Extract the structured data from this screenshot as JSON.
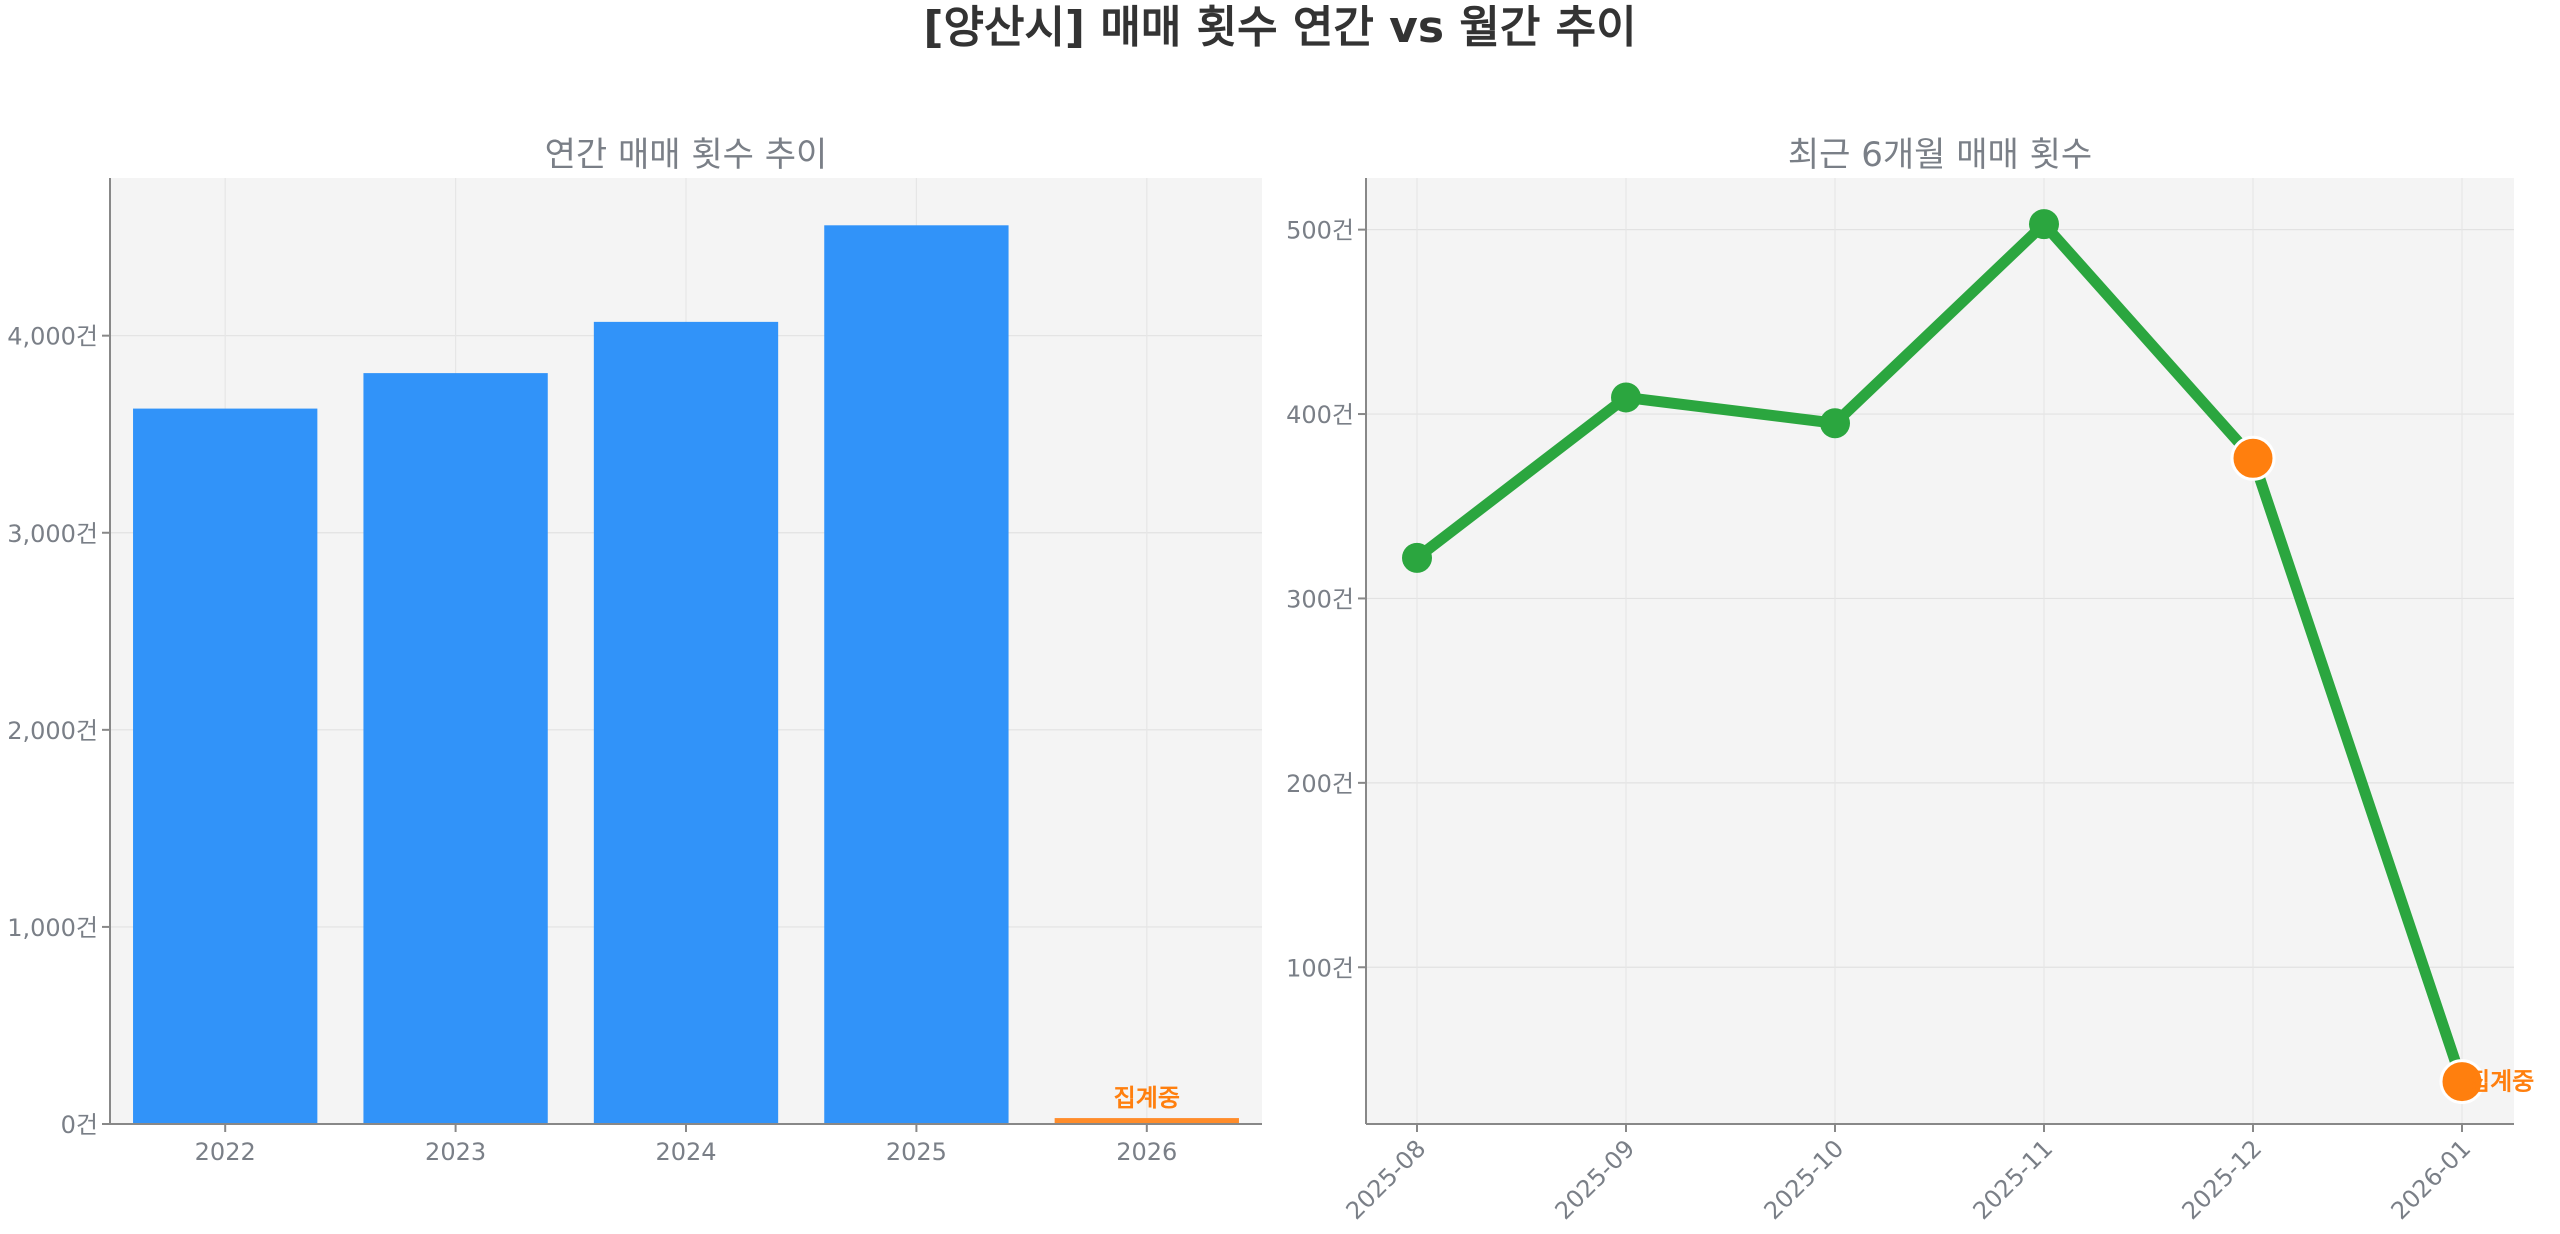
{
  "figure": {
    "title": "[양산시] 매매 횟수 연간 vs 월간 추이"
  },
  "colors": {
    "background": "#ffffff",
    "plot_background": "#f4f4f4",
    "bar": "#3193f9",
    "bar_incomplete": "#ff8c2a",
    "line": "#2ba63f",
    "marker": "#2ba63f",
    "marker_highlight": "#ff7f0e",
    "text_muted": "#7a7f87",
    "title": "#333333",
    "status": "#ff7f0e"
  },
  "chart_data": [
    {
      "type": "bar",
      "title": "연간 매매 횟수 추이",
      "categories": [
        "2022",
        "2023",
        "2024",
        "2025",
        "2026"
      ],
      "values": [
        3630,
        3810,
        4070,
        4560,
        30
      ],
      "ylim": [
        0,
        4800
      ],
      "yticks": [
        0,
        1000,
        2000,
        3000,
        4000
      ],
      "ytick_labels": [
        "0건",
        "1,000건",
        "2,000건",
        "3,000건",
        "4,000건"
      ],
      "grid": true,
      "incomplete_index": 4,
      "incomplete_label": "집계중"
    },
    {
      "type": "line",
      "title": "최근 6개월 매매 횟수",
      "categories": [
        "2025-08",
        "2025-09",
        "2025-10",
        "2025-11",
        "2025-12",
        "2026-01"
      ],
      "values": [
        322,
        409,
        395,
        503,
        376,
        38
      ],
      "ylim": [
        15,
        528
      ],
      "yticks": [
        100,
        200,
        300,
        400,
        500
      ],
      "ytick_labels": [
        "100건",
        "200건",
        "300건",
        "400건",
        "500건"
      ],
      "grid": true,
      "highlight_indices": [
        4,
        5
      ],
      "incomplete_index": 5,
      "incomplete_label": "집계중"
    }
  ]
}
